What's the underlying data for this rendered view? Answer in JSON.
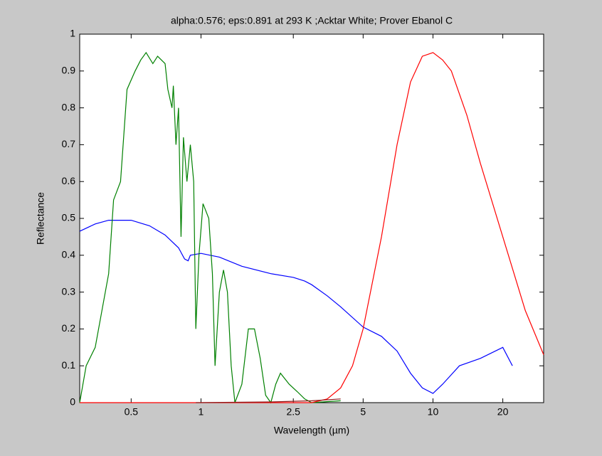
{
  "chart_data": {
    "type": "line",
    "title": "alpha:0.576; eps:0.891 at 293 K ;Acktar White; Prover Ebanol C",
    "x_label": "Wavelength (µm)",
    "y_label": "Reflectance",
    "xscale": "log",
    "xlim": [
      0.3,
      30
    ],
    "xticks": [
      0.5,
      1,
      2.5,
      5,
      10,
      20
    ],
    "ylim": [
      0,
      1
    ],
    "yticks": [
      0,
      0.1,
      0.2,
      0.3,
      0.4,
      0.5,
      0.6,
      0.7,
      0.8,
      0.9,
      1
    ],
    "grid": false,
    "series": [
      {
        "color": "#0000ff",
        "x": [
          0.3,
          0.35,
          0.4,
          0.5,
          0.6,
          0.7,
          0.8,
          0.85,
          0.88,
          0.9,
          1.0,
          1.2,
          1.5,
          2.0,
          2.5,
          2.8,
          3.0,
          3.5,
          4,
          5,
          6,
          7,
          8,
          9,
          10,
          11,
          13,
          16,
          20,
          22
        ],
        "values": [
          0.465,
          0.485,
          0.495,
          0.495,
          0.48,
          0.455,
          0.42,
          0.39,
          0.385,
          0.4,
          0.405,
          0.395,
          0.37,
          0.35,
          0.34,
          0.33,
          0.32,
          0.29,
          0.26,
          0.205,
          0.18,
          0.14,
          0.08,
          0.04,
          0.025,
          0.05,
          0.1,
          0.12,
          0.15,
          0.1
        ]
      },
      {
        "color": "#008000",
        "x": [
          0.3,
          0.32,
          0.35,
          0.4,
          0.42,
          0.45,
          0.48,
          0.52,
          0.55,
          0.58,
          0.62,
          0.65,
          0.7,
          0.72,
          0.75,
          0.76,
          0.78,
          0.8,
          0.82,
          0.84,
          0.87,
          0.9,
          0.93,
          0.95,
          0.98,
          1.02,
          1.08,
          1.12,
          1.15,
          1.2,
          1.25,
          1.3,
          1.35,
          1.4,
          1.5,
          1.6,
          1.7,
          1.8,
          1.9,
          2.0,
          2.1,
          2.2,
          2.4,
          2.6,
          2.8,
          3.0,
          4
        ],
        "values": [
          0,
          0.1,
          0.15,
          0.35,
          0.55,
          0.6,
          0.85,
          0.9,
          0.93,
          0.95,
          0.92,
          0.94,
          0.92,
          0.85,
          0.8,
          0.86,
          0.7,
          0.8,
          0.45,
          0.72,
          0.6,
          0.7,
          0.6,
          0.2,
          0.4,
          0.54,
          0.5,
          0.35,
          0.1,
          0.3,
          0.36,
          0.3,
          0.1,
          0,
          0.05,
          0.2,
          0.2,
          0.12,
          0.02,
          0,
          0.05,
          0.08,
          0.05,
          0.03,
          0.01,
          0,
          0.005
        ]
      },
      {
        "color": "#ff0000",
        "x": [
          0.3,
          3,
          3.5,
          4,
          4.5,
          5,
          6,
          7,
          8,
          9,
          10,
          11,
          12,
          14,
          16,
          20,
          25,
          30
        ],
        "values": [
          0,
          0,
          0.01,
          0.04,
          0.1,
          0.2,
          0.45,
          0.7,
          0.87,
          0.94,
          0.95,
          0.93,
          0.9,
          0.78,
          0.65,
          0.45,
          0.25,
          0.13
        ]
      },
      {
        "color": "#8b1a1a",
        "x": [
          0.95,
          2,
          3,
          4
        ],
        "values": [
          0,
          0.002,
          0.005,
          0.01
        ]
      }
    ]
  }
}
